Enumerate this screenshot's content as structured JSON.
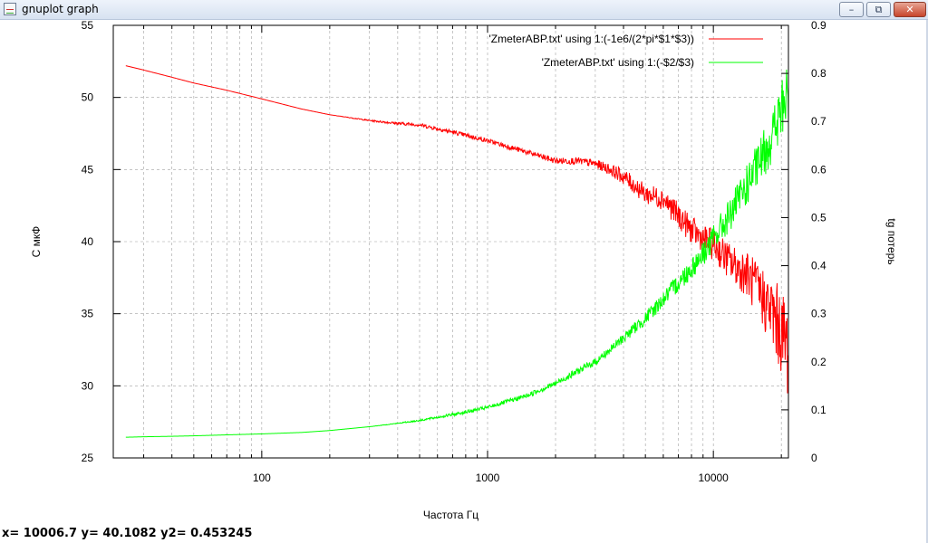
{
  "window": {
    "title": "gnuplot graph",
    "minimize_glyph": "–",
    "maximize_glyph": "⧉",
    "close_glyph": "✕"
  },
  "status": {
    "text": "x= 10006.7 y= 40.1082 y2= 0.453245"
  },
  "colors": {
    "series1": "#ff0000",
    "series2": "#00ff00",
    "grid": "#a0a0a0"
  },
  "chart_data": {
    "type": "line",
    "title": "",
    "xlabel": "Частота Гц",
    "ylabel": "C мкФ",
    "y2label": "tg потерь",
    "xscale": "log",
    "xlim": [
      22,
      21500
    ],
    "ylim": [
      25,
      55
    ],
    "y2lim": [
      0,
      0.9
    ],
    "grid": true,
    "legend_position": "top-right",
    "xticks": [
      "100",
      "1000",
      "10000"
    ],
    "yticks": [
      "25",
      "30",
      "35",
      "40",
      "45",
      "50",
      "55"
    ],
    "y2ticks": [
      "0",
      "0.1",
      "0.2",
      "0.3",
      "0.4",
      "0.5",
      "0.6",
      "0.7",
      "0.8",
      "0.9"
    ],
    "series": [
      {
        "name": "'ZmeterABP.txt' using 1:(-1e6/(2*pi*$1*$3))",
        "axis": "y1",
        "x": [
          25,
          30,
          40,
          50,
          70,
          100,
          150,
          200,
          300,
          400,
          500,
          700,
          1000,
          1500,
          2000,
          2500,
          3000,
          3500,
          4000,
          5000,
          6000,
          7000,
          8000,
          9000,
          10000,
          12000,
          14000,
          16000,
          18000,
          20000,
          21500
        ],
        "y": [
          52.2,
          51.9,
          51.4,
          51.0,
          50.5,
          49.9,
          49.2,
          48.8,
          48.4,
          48.2,
          48.1,
          47.6,
          47.0,
          46.2,
          45.6,
          45.6,
          45.4,
          45.0,
          44.5,
          43.3,
          43.0,
          41.8,
          40.8,
          40.2,
          39.8,
          38.5,
          37.8,
          36.5,
          35.2,
          33.8,
          32.5
        ],
        "noise": [
          0,
          0,
          0,
          0,
          0,
          0,
          0,
          0,
          0.05,
          0.1,
          0.12,
          0.15,
          0.15,
          0.18,
          0.22,
          0.25,
          0.3,
          0.4,
          0.55,
          0.7,
          0.8,
          0.9,
          0.95,
          1.0,
          1.1,
          1.3,
          1.6,
          2.0,
          2.5,
          3.0,
          3.5
        ]
      },
      {
        "name": "'ZmeterABP.txt' using 1:(-$2/$3)",
        "axis": "y2",
        "x": [
          25,
          30,
          40,
          50,
          70,
          100,
          150,
          200,
          300,
          400,
          500,
          700,
          1000,
          1500,
          2000,
          2500,
          3000,
          3500,
          4000,
          5000,
          6000,
          7000,
          8000,
          9000,
          10000,
          12000,
          14000,
          16000,
          18000,
          20000,
          21500
        ],
        "y": [
          0.043,
          0.044,
          0.045,
          0.046,
          0.048,
          0.05,
          0.053,
          0.057,
          0.065,
          0.072,
          0.078,
          0.09,
          0.105,
          0.13,
          0.155,
          0.18,
          0.2,
          0.225,
          0.25,
          0.29,
          0.33,
          0.365,
          0.395,
          0.425,
          0.455,
          0.51,
          0.565,
          0.615,
          0.665,
          0.72,
          0.76
        ],
        "noise": [
          0,
          0,
          0,
          0,
          0,
          0,
          0,
          0,
          0,
          0.001,
          0.002,
          0.003,
          0.004,
          0.005,
          0.006,
          0.007,
          0.008,
          0.009,
          0.011,
          0.014,
          0.017,
          0.02,
          0.023,
          0.026,
          0.03,
          0.036,
          0.042,
          0.048,
          0.055,
          0.065,
          0.075
        ]
      }
    ]
  }
}
